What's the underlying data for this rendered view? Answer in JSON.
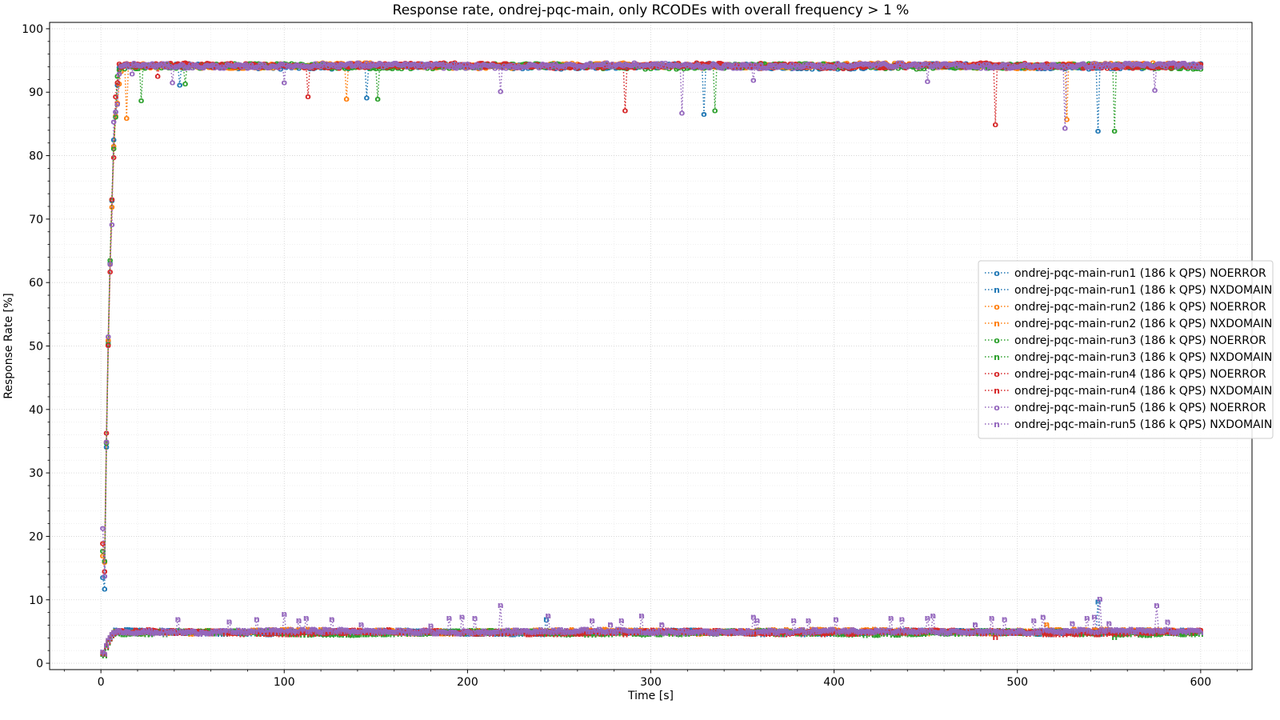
{
  "chart_data": {
    "type": "line",
    "title": "Response rate, ondrej-pqc-main, only RCODEs with overall frequency > 1 %",
    "xlabel": "Time [s]",
    "ylabel": "Response Rate [%]",
    "xlim": [
      -28,
      628
    ],
    "ylim": [
      -1,
      101
    ],
    "xticks": [
      0,
      100,
      200,
      300,
      400,
      500,
      600
    ],
    "yticks": [
      0,
      10,
      20,
      30,
      40,
      50,
      60,
      70,
      80,
      90,
      100
    ],
    "grid": true,
    "legend_position": "center-right",
    "line_style": "dotted",
    "series": [
      {
        "name": "ondrej-pqc-main-run1 (186 k QPS) NOERROR",
        "rcode": "NOERROR",
        "marker": "o",
        "color": "#1f77b4",
        "steady": 94.2,
        "plateau_start": 10,
        "ramp": [
          [
            1,
            13.6
          ],
          [
            2,
            11.8
          ],
          [
            3,
            34.2
          ],
          [
            4,
            50.8
          ],
          [
            5,
            63.2
          ],
          [
            6,
            73.0
          ],
          [
            7,
            82.6
          ],
          [
            8,
            87.0
          ],
          [
            9,
            91.2
          ],
          [
            10,
            94.0
          ]
        ],
        "dips": [
          [
            43,
            91.2
          ],
          [
            145,
            89.2
          ],
          [
            329,
            86.6
          ],
          [
            544,
            84.0
          ]
        ]
      },
      {
        "name": "ondrej-pqc-main-run1 (186 k QPS) NXDOMAIN",
        "rcode": "NXDOMAIN",
        "marker": "n",
        "color": "#1f77b4",
        "steady": 5.0,
        "plateau_start": 10,
        "ramp": [
          [
            1,
            1.6
          ],
          [
            2,
            1.4
          ],
          [
            3,
            2.6
          ],
          [
            4,
            3.4
          ],
          [
            5,
            4.0
          ],
          [
            6,
            4.5
          ],
          [
            7,
            4.8
          ]
        ],
        "spikes": [
          [
            243,
            7.0
          ],
          [
            544,
            9.8
          ]
        ]
      },
      {
        "name": "ondrej-pqc-main-run2 (186 k QPS) NOERROR",
        "rcode": "NOERROR",
        "marker": "o",
        "color": "#ff7f0e",
        "steady": 94.3,
        "plateau_start": 10,
        "ramp": [
          [
            1,
            17.0
          ],
          [
            2,
            16.0
          ],
          [
            3,
            35.0
          ],
          [
            4,
            51.0
          ],
          [
            5,
            63.0
          ],
          [
            6,
            72.0
          ],
          [
            7,
            81.6
          ],
          [
            8,
            86.4
          ],
          [
            9,
            88.4
          ],
          [
            10,
            91.4
          ],
          [
            11,
            93.4
          ]
        ],
        "dips": [
          [
            14,
            86.0
          ],
          [
            134,
            89.0
          ],
          [
            527,
            85.8
          ]
        ]
      },
      {
        "name": "ondrej-pqc-main-run2 (186 k QPS) NXDOMAIN",
        "rcode": "NXDOMAIN",
        "marker": "n",
        "color": "#ff7f0e",
        "steady": 5.1,
        "plateau_start": 10,
        "ramp": [
          [
            1,
            1.8
          ],
          [
            2,
            1.6
          ],
          [
            3,
            2.8
          ],
          [
            4,
            3.6
          ],
          [
            5,
            4.1
          ],
          [
            6,
            4.6
          ],
          [
            7,
            4.9
          ]
        ],
        "spikes": [
          [
            516,
            6.2
          ]
        ]
      },
      {
        "name": "ondrej-pqc-main-run3 (186 k QPS) NOERROR",
        "rcode": "NOERROR",
        "marker": "o",
        "color": "#2ca02c",
        "steady": 94.2,
        "plateau_start": 10,
        "ramp": [
          [
            1,
            17.8
          ],
          [
            2,
            16.2
          ],
          [
            3,
            34.8
          ],
          [
            4,
            50.4
          ],
          [
            5,
            63.6
          ],
          [
            6,
            73.2
          ],
          [
            7,
            81.2
          ],
          [
            8,
            86.2
          ],
          [
            9,
            92.6
          ],
          [
            10,
            93.6
          ]
        ],
        "dips": [
          [
            22,
            88.8
          ],
          [
            46,
            91.4
          ],
          [
            151,
            89.0
          ],
          [
            335,
            87.2
          ],
          [
            553,
            84.0
          ]
        ]
      },
      {
        "name": "ondrej-pqc-main-run3 (186 k QPS) NXDOMAIN",
        "rcode": "NXDOMAIN",
        "marker": "n",
        "color": "#2ca02c",
        "steady": 4.9,
        "plateau_start": 10,
        "ramp": [
          [
            1,
            1.5
          ],
          [
            2,
            1.3
          ],
          [
            3,
            2.5
          ],
          [
            4,
            3.3
          ],
          [
            5,
            3.9
          ],
          [
            6,
            4.4
          ],
          [
            7,
            4.7
          ]
        ],
        "spikes": [
          [
            553,
            4.2
          ]
        ]
      },
      {
        "name": "ondrej-pqc-main-run4 (186 k QPS) NOERROR",
        "rcode": "NOERROR",
        "marker": "o",
        "color": "#d62728",
        "steady": 94.3,
        "plateau_start": 10,
        "ramp": [
          [
            1,
            19.0
          ],
          [
            2,
            14.6
          ],
          [
            3,
            36.4
          ],
          [
            4,
            50.2
          ],
          [
            5,
            61.8
          ],
          [
            6,
            73.2
          ],
          [
            7,
            79.8
          ],
          [
            8,
            89.4
          ],
          [
            9,
            91.6
          ]
        ],
        "dips": [
          [
            31,
            92.6
          ],
          [
            113,
            89.4
          ],
          [
            286,
            87.2
          ],
          [
            488,
            85.0
          ]
        ]
      },
      {
        "name": "ondrej-pqc-main-run4 (186 k QPS) NXDOMAIN",
        "rcode": "NXDOMAIN",
        "marker": "n",
        "color": "#d62728",
        "steady": 5.0,
        "plateau_start": 10,
        "ramp": [
          [
            1,
            1.7
          ],
          [
            2,
            1.5
          ],
          [
            3,
            2.7
          ],
          [
            4,
            3.5
          ],
          [
            5,
            4.0
          ],
          [
            6,
            4.5
          ],
          [
            7,
            4.8
          ]
        ],
        "spikes": [
          [
            488,
            4.2
          ],
          [
            286,
            4.6
          ]
        ]
      },
      {
        "name": "ondrej-pqc-main-run5 (186 k QPS) NOERROR",
        "rcode": "NOERROR",
        "marker": "o",
        "color": "#9467bd",
        "steady": 94.3,
        "plateau_start": 10,
        "ramp": [
          [
            1,
            21.4
          ],
          [
            2,
            13.8
          ],
          [
            3,
            35.0
          ],
          [
            4,
            51.6
          ],
          [
            5,
            63.0
          ],
          [
            6,
            69.2
          ],
          [
            7,
            85.4
          ],
          [
            8,
            87.0
          ],
          [
            9,
            88.2
          ],
          [
            10,
            93.0
          ],
          [
            11,
            94.2
          ]
        ],
        "dips": [
          [
            17,
            93.0
          ],
          [
            39,
            91.6
          ],
          [
            100,
            91.6
          ],
          [
            218,
            90.2
          ],
          [
            317,
            86.8
          ],
          [
            356,
            92.0
          ],
          [
            451,
            91.8
          ],
          [
            526,
            84.4
          ],
          [
            575,
            90.4
          ]
        ]
      },
      {
        "name": "ondrej-pqc-main-run5 (186 k QPS) NXDOMAIN",
        "rcode": "NXDOMAIN",
        "marker": "n",
        "color": "#9467bd",
        "steady": 5.1,
        "plateau_start": 10,
        "ramp": [
          [
            1,
            1.9
          ],
          [
            2,
            1.6
          ],
          [
            3,
            2.9
          ],
          [
            4,
            3.7
          ],
          [
            5,
            4.2
          ],
          [
            6,
            4.7
          ],
          [
            7,
            5.0
          ]
        ],
        "spikes": [
          [
            42,
            7.0
          ],
          [
            70,
            6.6
          ],
          [
            85,
            7.0
          ],
          [
            100,
            7.8
          ],
          [
            108,
            6.8
          ],
          [
            112,
            7.2
          ],
          [
            126,
            7.0
          ],
          [
            142,
            6.2
          ],
          [
            180,
            6.0
          ],
          [
            190,
            7.2
          ],
          [
            197,
            7.4
          ],
          [
            204,
            7.2
          ],
          [
            218,
            9.2
          ],
          [
            244,
            7.6
          ],
          [
            268,
            6.8
          ],
          [
            278,
            6.2
          ],
          [
            284,
            6.8
          ],
          [
            295,
            7.6
          ],
          [
            306,
            6.2
          ],
          [
            356,
            7.4
          ],
          [
            358,
            6.8
          ],
          [
            378,
            6.8
          ],
          [
            386,
            6.8
          ],
          [
            401,
            7.0
          ],
          [
            431,
            7.2
          ],
          [
            437,
            7.0
          ],
          [
            451,
            7.2
          ],
          [
            454,
            7.6
          ],
          [
            477,
            6.2
          ],
          [
            486,
            7.2
          ],
          [
            493,
            7.0
          ],
          [
            509,
            6.8
          ],
          [
            514,
            7.4
          ],
          [
            530,
            6.4
          ],
          [
            538,
            7.2
          ],
          [
            542,
            7.4
          ],
          [
            545,
            10.2
          ],
          [
            550,
            6.4
          ],
          [
            576,
            9.2
          ],
          [
            582,
            6.6
          ]
        ]
      }
    ]
  }
}
